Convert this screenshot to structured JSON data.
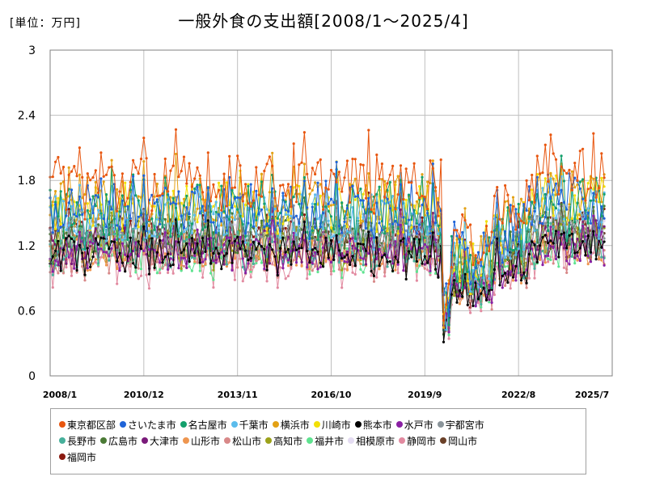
{
  "unit_label": "[単位：万円]",
  "title": "一般外食の支出額[2008/1～2025/4]",
  "chart_data": {
    "type": "line",
    "title": "一般外食の支出額[2008/1～2025/4]",
    "unit": "[単位：万円]",
    "ylim": [
      0,
      3
    ],
    "yticks": [
      "0",
      "0.6",
      "1.2",
      "1.8",
      "2.4",
      "3"
    ],
    "xticks": [
      "2008/1",
      "2010/12",
      "2013/11",
      "2016/10",
      "2019/9",
      "2022/8",
      "2025/7"
    ],
    "x_start": "2008-01",
    "x_end": "2025-04",
    "grid": true,
    "legend_position": "bottom",
    "series": [
      {
        "name": "東京都区部",
        "color": "#e8560f",
        "level": 1.78,
        "amp": 0.26
      },
      {
        "name": "さいたま市",
        "color": "#1f64d8",
        "level": 1.55,
        "amp": 0.24
      },
      {
        "name": "名古屋市",
        "color": "#14a06c",
        "level": 1.5,
        "amp": 0.26
      },
      {
        "name": "千葉市",
        "color": "#5bbcec",
        "level": 1.45,
        "amp": 0.22
      },
      {
        "name": "横浜市",
        "color": "#e3a115",
        "level": 1.6,
        "amp": 0.24
      },
      {
        "name": "川崎市",
        "color": "#f2e007",
        "level": 1.55,
        "amp": 0.24
      },
      {
        "name": "熊本市",
        "color": "#000000",
        "level": 1.12,
        "amp": 0.16
      },
      {
        "name": "水戸市",
        "color": "#8a1fa3",
        "level": 1.12,
        "amp": 0.16
      },
      {
        "name": "宇都宮市",
        "color": "#8a949a",
        "level": 1.3,
        "amp": 0.2
      },
      {
        "name": "長野市",
        "color": "#46b09b",
        "level": 1.2,
        "amp": 0.2
      },
      {
        "name": "広島市",
        "color": "#4a7a35",
        "level": 1.3,
        "amp": 0.2
      },
      {
        "name": "大津市",
        "color": "#7a1a7a",
        "level": 1.2,
        "amp": 0.18
      },
      {
        "name": "山形市",
        "color": "#ee9650",
        "level": 1.15,
        "amp": 0.18
      },
      {
        "name": "松山市",
        "color": "#d88888",
        "level": 1.12,
        "amp": 0.18
      },
      {
        "name": "高知市",
        "color": "#9ca21a",
        "level": 1.2,
        "amp": 0.18
      },
      {
        "name": "福井市",
        "color": "#5fe390",
        "level": 1.12,
        "amp": 0.18
      },
      {
        "name": "相模原市",
        "color": "#e4dcf2",
        "level": 1.3,
        "amp": 0.2
      },
      {
        "name": "静岡市",
        "color": "#e28aa0",
        "level": 1.05,
        "amp": 0.18
      },
      {
        "name": "岡山市",
        "color": "#6a4028",
        "level": 1.2,
        "amp": 0.18
      },
      {
        "name": "福岡市",
        "color": "#8a1a10",
        "level": 1.3,
        "amp": 0.2
      }
    ]
  },
  "legend": {
    "rows": [
      [
        {
          "label": "東京都区部",
          "color": "#e8560f"
        },
        {
          "label": "さいたま市",
          "color": "#1f64d8"
        },
        {
          "label": "名古屋市",
          "color": "#14a06c"
        },
        {
          "label": "千葉市",
          "color": "#5bbcec"
        },
        {
          "label": "横浜市",
          "color": "#e3a115"
        },
        {
          "label": "川崎市",
          "color": "#f2e007"
        },
        {
          "label": "熊本市",
          "color": "#000000"
        },
        {
          "label": "水戸市",
          "color": "#8a1fa3"
        },
        {
          "label": "宇都宮市",
          "color": "#8a949a"
        }
      ],
      [
        {
          "label": "長野市",
          "color": "#46b09b"
        },
        {
          "label": "広島市",
          "color": "#4a7a35"
        },
        {
          "label": "大津市",
          "color": "#7a1a7a"
        },
        {
          "label": "山形市",
          "color": "#ee9650"
        },
        {
          "label": "松山市",
          "color": "#d88888"
        },
        {
          "label": "高知市",
          "color": "#9ca21a"
        },
        {
          "label": "福井市",
          "color": "#5fe390"
        },
        {
          "label": "相模原市",
          "color": "#e4dcf2"
        },
        {
          "label": "静岡市",
          "color": "#e28aa0"
        },
        {
          "label": "岡山市",
          "color": "#6a4028"
        }
      ],
      [
        {
          "label": "福岡市",
          "color": "#8a1a10"
        }
      ]
    ]
  }
}
